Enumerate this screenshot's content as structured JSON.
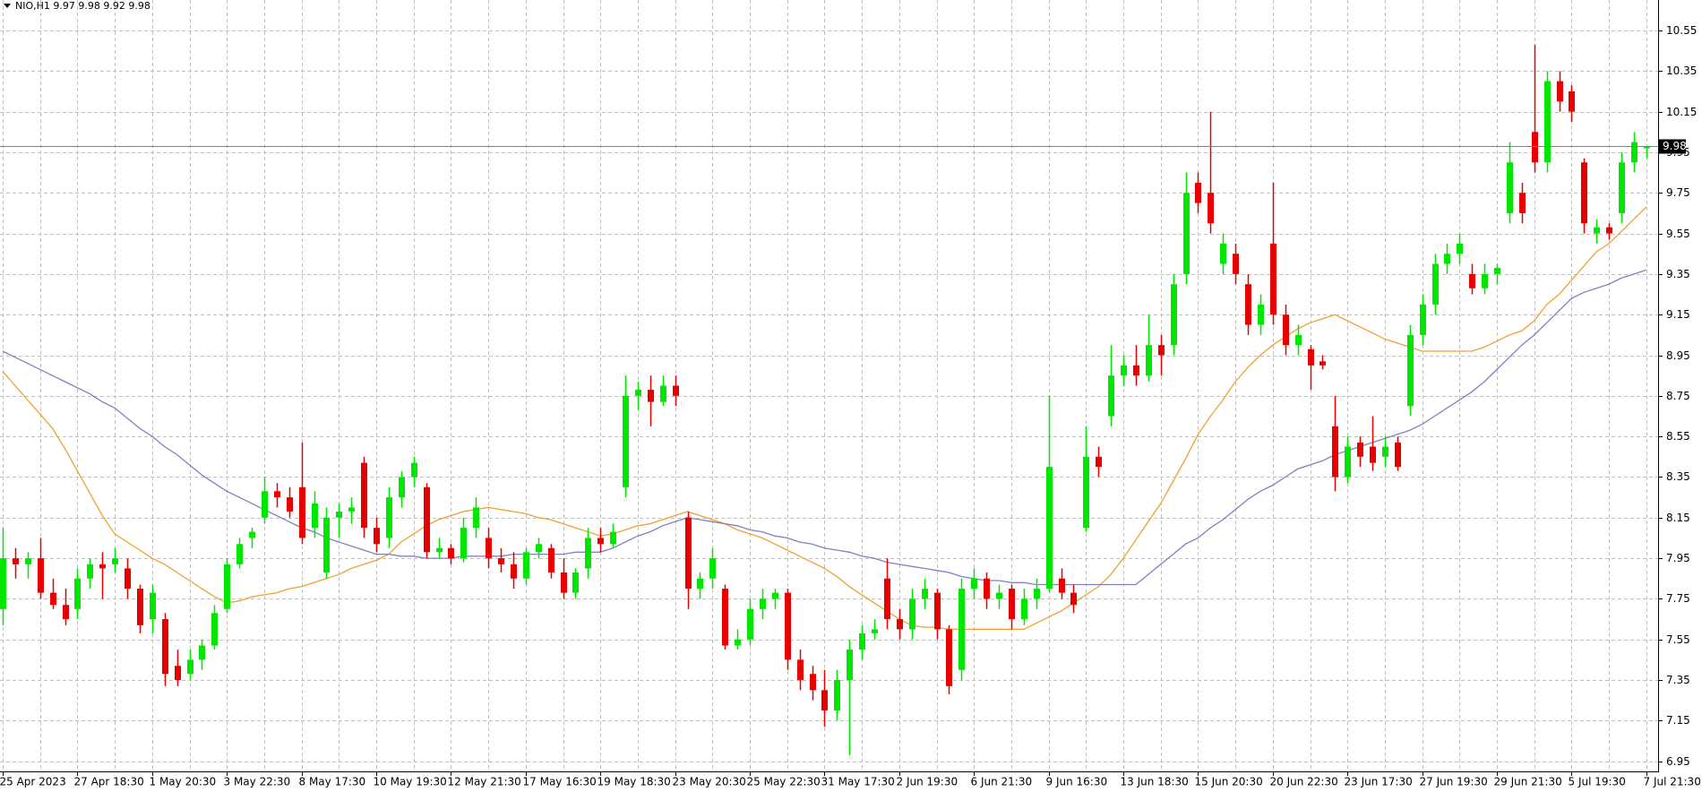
{
  "chart_data": {
    "type": "candlestick",
    "header": "NIO,H1  9.97 9.98 9.92 9.98",
    "current_price": 9.98,
    "up_color": "#00e600",
    "down_color": "#e60000",
    "grid": true,
    "ylim": [
      6.9,
      10.7
    ],
    "yticks": [
      6.95,
      7.15,
      7.35,
      7.55,
      7.75,
      7.95,
      8.15,
      8.35,
      8.55,
      8.75,
      8.95,
      9.15,
      9.35,
      9.55,
      9.75,
      9.95,
      10.15,
      10.35,
      10.55
    ],
    "categories": [
      "25 Apr 2023",
      null,
      null,
      null,
      null,
      null,
      "27 Apr 18:30",
      null,
      null,
      null,
      null,
      null,
      "1 May 20:30",
      null,
      null,
      null,
      null,
      null,
      "3 May 22:30",
      null,
      null,
      null,
      null,
      null,
      "8 May 17:30",
      null,
      null,
      null,
      null,
      null,
      "10 May 19:30",
      null,
      null,
      null,
      null,
      null,
      "12 May 21:30",
      null,
      null,
      null,
      null,
      null,
      "17 May 16:30",
      null,
      null,
      null,
      null,
      null,
      "19 May 18:30",
      null,
      null,
      null,
      null,
      null,
      "23 May 20:30",
      null,
      null,
      null,
      null,
      null,
      "25 May 22:30",
      null,
      null,
      null,
      null,
      null,
      "31 May 17:30",
      null,
      null,
      null,
      null,
      null,
      "2 Jun 19:30",
      null,
      null,
      null,
      null,
      null,
      "6 Jun 21:30",
      null,
      null,
      null,
      null,
      null,
      "9 Jun 16:30",
      null,
      null,
      null,
      null,
      null,
      "13 Jun 18:30",
      null,
      null,
      null,
      null,
      null,
      "15 Jun 20:30",
      null,
      null,
      null,
      null,
      null,
      "20 Jun 22:30",
      null,
      null,
      null,
      null,
      null,
      "23 Jun 17:30",
      null,
      null,
      null,
      null,
      null,
      "27 Jun 19:30",
      null,
      null,
      null,
      null,
      null,
      "29 Jun 21:30",
      null,
      null,
      null,
      null,
      null,
      "5 Jul 19:30",
      null,
      null,
      null,
      null,
      null,
      "7 Jul 21:30"
    ],
    "open": [
      7.7,
      7.95,
      7.92,
      7.95,
      7.78,
      7.72,
      7.7,
      7.85,
      7.92,
      7.92,
      7.9,
      7.8,
      7.65,
      7.65,
      7.42,
      7.38,
      7.45,
      7.52,
      7.7,
      7.92,
      8.05,
      8.15,
      8.28,
      8.25,
      8.3,
      8.1,
      7.88,
      8.15,
      8.18,
      8.42,
      8.1,
      8.05,
      8.25,
      8.35,
      8.3,
      7.98,
      8.0,
      7.95,
      8.1,
      8.05,
      7.95,
      7.92,
      7.85,
      7.98,
      8.0,
      7.88,
      7.78,
      7.9,
      8.05,
      8.02,
      8.3,
      8.75,
      8.78,
      8.72,
      8.8,
      8.15,
      7.8,
      7.85,
      7.8,
      7.52,
      7.55,
      7.7,
      7.75,
      7.78,
      7.45,
      7.38,
      7.3,
      7.2,
      7.35,
      7.5,
      7.58,
      7.85,
      7.65,
      7.6,
      7.75,
      7.78,
      7.6,
      7.4,
      7.8,
      7.85,
      7.75,
      7.8,
      7.65,
      7.75,
      7.8,
      7.85,
      7.78,
      8.1,
      8.45,
      8.65,
      8.85,
      8.9,
      8.85,
      9.0,
      9.0,
      9.35,
      9.8,
      9.75,
      9.4,
      9.45,
      9.3,
      9.1,
      9.5,
      9.15,
      9.0,
      8.98,
      8.92,
      8.6,
      8.35,
      8.52,
      8.5,
      8.45,
      8.52,
      8.7,
      9.05,
      9.2,
      9.4,
      9.45,
      9.35,
      9.28,
      9.35,
      9.65,
      9.75,
      10.05,
      9.9,
      10.3,
      10.25,
      9.9,
      9.55,
      9.58,
      9.65,
      9.9,
      9.97
    ],
    "high": [
      8.1,
      8.0,
      7.98,
      8.05,
      7.85,
      7.8,
      7.9,
      7.95,
      7.98,
      8.0,
      7.95,
      7.82,
      7.82,
      7.68,
      7.5,
      7.5,
      7.55,
      7.72,
      7.95,
      8.05,
      8.1,
      8.35,
      8.32,
      8.3,
      8.52,
      8.28,
      8.2,
      8.22,
      8.25,
      8.45,
      8.15,
      8.3,
      8.38,
      8.45,
      8.32,
      8.05,
      8.02,
      8.15,
      8.25,
      8.1,
      8.0,
      7.98,
      8.0,
      8.05,
      8.02,
      7.95,
      7.9,
      8.1,
      8.1,
      8.12,
      8.85,
      8.82,
      8.85,
      8.85,
      8.85,
      8.18,
      7.88,
      8.0,
      7.82,
      7.6,
      7.75,
      7.8,
      7.8,
      7.8,
      7.5,
      7.42,
      7.4,
      7.4,
      7.55,
      7.62,
      7.65,
      7.95,
      7.7,
      7.8,
      7.85,
      7.8,
      7.62,
      7.85,
      7.9,
      7.88,
      7.82,
      7.82,
      7.8,
      7.85,
      8.75,
      7.9,
      7.82,
      8.6,
      8.5,
      9.0,
      8.95,
      9.0,
      9.15,
      9.05,
      9.35,
      9.85,
      9.85,
      10.15,
      9.55,
      9.5,
      9.35,
      9.25,
      9.8,
      9.2,
      9.1,
      9.0,
      8.95,
      8.75,
      8.55,
      8.55,
      8.65,
      8.55,
      8.55,
      9.1,
      9.25,
      9.45,
      9.5,
      9.55,
      9.4,
      9.4,
      9.4,
      10.0,
      9.8,
      10.48,
      10.35,
      10.35,
      10.28,
      9.92,
      9.62,
      9.6,
      9.95,
      10.05,
      9.98
    ],
    "low": [
      7.62,
      7.85,
      7.85,
      7.75,
      7.7,
      7.62,
      7.65,
      7.8,
      7.75,
      7.88,
      7.75,
      7.58,
      7.58,
      7.32,
      7.32,
      7.35,
      7.4,
      7.5,
      7.68,
      7.9,
      8.0,
      8.12,
      8.2,
      8.15,
      8.02,
      8.05,
      7.85,
      8.05,
      8.12,
      8.05,
      7.98,
      8.0,
      8.2,
      8.3,
      7.95,
      7.95,
      7.92,
      7.93,
      8.05,
      7.9,
      7.88,
      7.8,
      7.82,
      7.95,
      7.85,
      7.75,
      7.75,
      7.85,
      7.98,
      8.0,
      8.25,
      8.68,
      8.6,
      8.7,
      8.7,
      7.7,
      7.75,
      7.8,
      7.5,
      7.5,
      7.52,
      7.65,
      7.7,
      7.4,
      7.3,
      7.25,
      7.12,
      7.15,
      6.98,
      7.45,
      7.55,
      7.6,
      7.55,
      7.55,
      7.7,
      7.55,
      7.28,
      7.35,
      7.75,
      7.7,
      7.7,
      7.6,
      7.62,
      7.7,
      7.78,
      7.75,
      7.68,
      8.08,
      8.35,
      8.6,
      8.8,
      8.8,
      8.82,
      8.85,
      8.95,
      9.3,
      9.65,
      9.55,
      9.35,
      9.3,
      9.05,
      9.05,
      9.1,
      8.95,
      8.95,
      8.78,
      8.88,
      8.28,
      8.32,
      8.4,
      8.38,
      8.4,
      8.38,
      8.65,
      9.0,
      9.15,
      9.35,
      9.4,
      9.25,
      9.25,
      9.3,
      9.6,
      9.6,
      9.85,
      9.85,
      10.15,
      10.1,
      9.55,
      9.5,
      9.52,
      9.6,
      9.85,
      9.92
    ],
    "close": [
      7.95,
      7.92,
      7.95,
      7.78,
      7.72,
      7.65,
      7.85,
      7.92,
      7.9,
      7.95,
      7.8,
      7.62,
      7.78,
      7.38,
      7.35,
      7.45,
      7.52,
      7.68,
      7.92,
      8.02,
      8.08,
      8.28,
      8.25,
      8.18,
      8.05,
      8.22,
      8.15,
      8.18,
      8.2,
      8.1,
      8.02,
      8.25,
      8.35,
      8.42,
      7.98,
      8.0,
      7.95,
      8.1,
      8.2,
      7.95,
      7.92,
      7.85,
      7.98,
      8.02,
      7.88,
      7.78,
      7.88,
      8.05,
      8.02,
      8.08,
      8.75,
      8.78,
      8.72,
      8.8,
      8.75,
      7.8,
      7.85,
      7.95,
      7.52,
      7.55,
      7.7,
      7.75,
      7.78,
      7.45,
      7.35,
      7.3,
      7.2,
      7.35,
      7.5,
      7.58,
      7.6,
      7.65,
      7.6,
      7.75,
      7.8,
      7.6,
      7.32,
      7.8,
      7.85,
      7.75,
      7.78,
      7.65,
      7.75,
      7.8,
      8.4,
      7.78,
      7.72,
      8.45,
      8.4,
      8.85,
      8.9,
      8.85,
      9.0,
      8.95,
      9.3,
      9.75,
      9.7,
      9.6,
      9.5,
      9.35,
      9.1,
      9.2,
      9.15,
      9.0,
      9.05,
      8.9,
      8.9,
      8.35,
      8.5,
      8.45,
      8.42,
      8.5,
      8.4,
      9.05,
      9.2,
      9.4,
      9.45,
      9.5,
      9.28,
      9.35,
      9.38,
      9.9,
      9.65,
      9.9,
      10.3,
      10.2,
      10.15,
      9.6,
      9.58,
      9.55,
      9.9,
      10.0,
      9.98
    ],
    "moving_averages": [
      {
        "color": "#f0a030",
        "values": [
          8.87,
          8.8,
          8.73,
          8.66,
          8.59,
          8.49,
          8.38,
          8.27,
          8.16,
          8.07,
          8.03,
          7.99,
          7.95,
          7.92,
          7.88,
          7.84,
          7.8,
          7.76,
          7.73,
          7.74,
          7.76,
          7.77,
          7.78,
          7.8,
          7.81,
          7.83,
          7.85,
          7.87,
          7.9,
          7.92,
          7.94,
          7.97,
          8.03,
          8.07,
          8.11,
          8.14,
          8.16,
          8.18,
          8.19,
          8.2,
          8.19,
          8.18,
          8.17,
          8.15,
          8.14,
          8.12,
          8.1,
          8.08,
          8.06,
          8.07,
          8.09,
          8.11,
          8.12,
          8.14,
          8.16,
          8.18,
          8.16,
          8.14,
          8.12,
          8.09,
          8.07,
          8.05,
          8.02,
          7.99,
          7.96,
          7.93,
          7.9,
          7.86,
          7.81,
          7.77,
          7.73,
          7.69,
          7.65,
          7.62,
          7.61,
          7.61,
          7.6,
          7.6,
          7.6,
          7.6,
          7.6,
          7.6,
          7.6,
          7.63,
          7.66,
          7.69,
          7.73,
          7.77,
          7.81,
          7.87,
          7.95,
          8.04,
          8.13,
          8.22,
          8.33,
          8.44,
          8.56,
          8.65,
          8.73,
          8.82,
          8.89,
          8.95,
          9.0,
          9.04,
          9.08,
          9.11,
          9.13,
          9.15,
          9.12,
          9.09,
          9.06,
          9.03,
          9.01,
          8.99,
          8.97,
          8.97,
          8.97,
          8.97,
          8.97,
          8.99,
          9.02,
          9.05,
          9.07,
          9.12,
          9.2,
          9.25,
          9.32,
          9.39,
          9.46,
          9.5,
          9.56,
          9.62,
          9.68
        ]
      },
      {
        "color": "#8080c0",
        "values": [
          8.97,
          8.94,
          8.91,
          8.88,
          8.85,
          8.82,
          8.79,
          8.76,
          8.72,
          8.69,
          8.64,
          8.59,
          8.55,
          8.5,
          8.46,
          8.41,
          8.36,
          8.32,
          8.28,
          8.25,
          8.22,
          8.19,
          8.16,
          8.13,
          8.1,
          8.08,
          8.05,
          8.03,
          8.01,
          7.99,
          7.97,
          7.97,
          7.96,
          7.96,
          7.95,
          7.95,
          7.95,
          7.96,
          7.96,
          7.96,
          7.96,
          7.97,
          7.97,
          7.97,
          7.97,
          7.97,
          7.98,
          7.98,
          7.98,
          8.0,
          8.03,
          8.06,
          8.08,
          8.11,
          8.13,
          8.15,
          8.14,
          8.13,
          8.12,
          8.11,
          8.09,
          8.08,
          8.06,
          8.05,
          8.03,
          8.02,
          8.0,
          7.99,
          7.98,
          7.96,
          7.95,
          7.93,
          7.92,
          7.91,
          7.9,
          7.89,
          7.88,
          7.86,
          7.85,
          7.84,
          7.84,
          7.83,
          7.83,
          7.82,
          7.82,
          7.82,
          7.82,
          7.82,
          7.82,
          7.82,
          7.82,
          7.82,
          7.87,
          7.92,
          7.97,
          8.02,
          8.05,
          8.1,
          8.14,
          8.19,
          8.24,
          8.28,
          8.31,
          8.35,
          8.39,
          8.41,
          8.43,
          8.46,
          8.48,
          8.5,
          8.52,
          8.54,
          8.56,
          8.58,
          8.61,
          8.65,
          8.69,
          8.73,
          8.77,
          8.82,
          8.88,
          8.94,
          9.0,
          9.05,
          9.11,
          9.17,
          9.23,
          9.26,
          9.28,
          9.3,
          9.33,
          9.35,
          9.37
        ]
      }
    ]
  }
}
